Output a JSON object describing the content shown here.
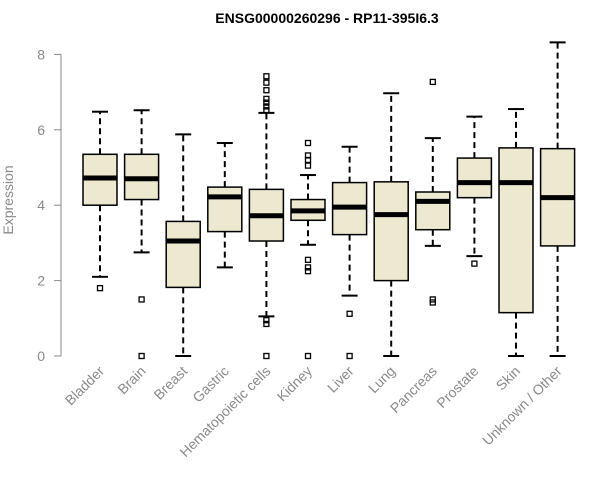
{
  "chart_data": {
    "type": "boxplot",
    "title": "ENSG00000260296 - RP11-395I6.3",
    "xlabel": "",
    "ylabel": "Expression",
    "ylim": [
      0,
      8.3
    ],
    "yticks": [
      0,
      2,
      4,
      6,
      8
    ],
    "box_color": "#ede8d0",
    "categories": [
      "Bladder",
      "Brain",
      "Breast",
      "Gastric",
      "Hematopoietic cells",
      "Kidney",
      "Liver",
      "Lung",
      "Pancreas",
      "Prostate",
      "Skin",
      "Unknown / Other"
    ],
    "boxes": [
      {
        "name": "Bladder",
        "min": 2.1,
        "q1": 4.0,
        "median": 4.72,
        "q3": 5.35,
        "max": 6.48,
        "outliers": [
          1.8
        ]
      },
      {
        "name": "Brain",
        "min": 2.75,
        "q1": 4.15,
        "median": 4.7,
        "q3": 5.35,
        "max": 6.52,
        "outliers": [
          1.5,
          0.0
        ]
      },
      {
        "name": "Breast",
        "min": 0.0,
        "q1": 1.82,
        "median": 3.05,
        "q3": 3.57,
        "max": 5.88,
        "outliers": []
      },
      {
        "name": "Gastric",
        "min": 2.35,
        "q1": 3.3,
        "median": 4.22,
        "q3": 4.48,
        "max": 5.65,
        "outliers": []
      },
      {
        "name": "Hematopoietic cells",
        "min": 1.05,
        "q1": 3.05,
        "median": 3.72,
        "q3": 4.42,
        "max": 6.45,
        "outliers": [
          7.42,
          7.25,
          7.05,
          6.82,
          6.72,
          6.62,
          6.52,
          0.95,
          0.85,
          0.0
        ]
      },
      {
        "name": "Kidney",
        "min": 2.95,
        "q1": 3.6,
        "median": 3.85,
        "q3": 4.15,
        "max": 4.8,
        "outliers": [
          5.65,
          5.32,
          5.2,
          5.05,
          2.55,
          2.35,
          2.25,
          0.0
        ]
      },
      {
        "name": "Liver",
        "min": 1.6,
        "q1": 3.22,
        "median": 3.95,
        "q3": 4.6,
        "max": 5.55,
        "outliers": [
          1.12,
          0.0
        ]
      },
      {
        "name": "Lung",
        "min": 0.0,
        "q1": 2.0,
        "median": 3.75,
        "q3": 4.62,
        "max": 6.97,
        "outliers": []
      },
      {
        "name": "Pancreas",
        "min": 2.92,
        "q1": 3.35,
        "median": 4.1,
        "q3": 4.35,
        "max": 5.78,
        "outliers": [
          7.27,
          1.5,
          1.42
        ]
      },
      {
        "name": "Prostate",
        "min": 2.65,
        "q1": 4.2,
        "median": 4.6,
        "q3": 5.25,
        "max": 6.35,
        "outliers": [
          2.45
        ]
      },
      {
        "name": "Skin",
        "min": 0.0,
        "q1": 1.15,
        "median": 4.6,
        "q3": 5.52,
        "max": 6.55,
        "outliers": []
      },
      {
        "name": "Unknown / Other",
        "min": 0.0,
        "q1": 2.92,
        "median": 4.2,
        "q3": 5.5,
        "max": 8.32,
        "outliers": []
      }
    ]
  }
}
